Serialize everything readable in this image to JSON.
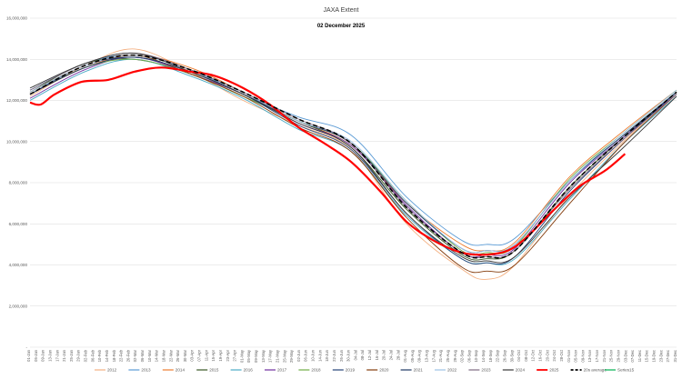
{
  "chart_data": {
    "type": "line",
    "title": "JAXA Extent",
    "subtitle": "02 December 2025",
    "ylim": [
      0,
      16000000
    ],
    "yticks": [
      "-",
      "2,000,000",
      "4,000,000",
      "6,000,000",
      "8,000,000",
      "10,000,000",
      "12,000,000",
      "14,000,000",
      "16,000,000"
    ],
    "ytick_values": [
      0,
      2000000,
      4000000,
      6000000,
      8000000,
      10000000,
      12000000,
      14000000,
      16000000
    ],
    "x_domain": [
      1,
      365
    ],
    "xticks": [
      "01-Jan",
      "05-Jan",
      "09-Jan",
      "13-Jan",
      "17-Jan",
      "21-Jan",
      "25-Jan",
      "29-Jan",
      "02-Feb",
      "06-Feb",
      "10-Feb",
      "14-Feb",
      "18-Feb",
      "22-Feb",
      "26-Feb",
      "02-Mar",
      "06-Mar",
      "10-Mar",
      "14-Mar",
      "18-Mar",
      "22-Mar",
      "26-Mar",
      "30-Mar",
      "03-Apr",
      "07-Apr",
      "11-Apr",
      "15-Apr",
      "19-Apr",
      "23-Apr",
      "27-Apr",
      "01-May",
      "05-May",
      "09-May",
      "13-May",
      "17-May",
      "21-May",
      "25-May",
      "29-May",
      "02-Jun",
      "06-Jun",
      "10-Jun",
      "14-Jun",
      "18-Jun",
      "22-Jun",
      "26-Jun",
      "30-Jun",
      "04-Jul",
      "08-Jul",
      "12-Jul",
      "16-Jul",
      "20-Jul",
      "24-Jul",
      "28-Jul",
      "01-Aug",
      "05-Aug",
      "09-Aug",
      "13-Aug",
      "17-Aug",
      "21-Aug",
      "25-Aug",
      "29-Aug",
      "02-Sep",
      "06-Sep",
      "10-Sep",
      "14-Sep",
      "18-Sep",
      "22-Sep",
      "26-Sep",
      "30-Sep",
      "04-Oct",
      "08-Oct",
      "12-Oct",
      "16-Oct",
      "20-Oct",
      "24-Oct",
      "28-Oct",
      "01-Nov",
      "05-Nov",
      "09-Nov",
      "13-Nov",
      "17-Nov",
      "21-Nov",
      "25-Nov",
      "29-Nov",
      "03-Dec",
      "07-Dec",
      "11-Dec",
      "15-Dec",
      "19-Dec",
      "23-Dec",
      "27-Dec",
      "31-Dec"
    ],
    "series": [
      {
        "name": "2012",
        "color": "#f4b183",
        "dash": "",
        "values": [
          [
            1,
            12200000
          ],
          [
            32,
            13700000
          ],
          [
            60,
            14500000
          ],
          [
            91,
            13400000
          ],
          [
            121,
            12000000
          ],
          [
            152,
            10800000
          ],
          [
            182,
            9600000
          ],
          [
            213,
            6000000
          ],
          [
            244,
            3800000
          ],
          [
            258,
            3300000
          ],
          [
            274,
            4000000
          ],
          [
            305,
            7400000
          ],
          [
            335,
            10000000
          ],
          [
            365,
            12400000
          ]
        ]
      },
      {
        "name": "2013",
        "color": "#5b9bd5",
        "dash": "",
        "values": [
          [
            1,
            12500000
          ],
          [
            32,
            13800000
          ],
          [
            60,
            14200000
          ],
          [
            91,
            13500000
          ],
          [
            121,
            12300000
          ],
          [
            152,
            11200000
          ],
          [
            182,
            10300000
          ],
          [
            213,
            7300000
          ],
          [
            244,
            5200000
          ],
          [
            258,
            5000000
          ],
          [
            274,
            5300000
          ],
          [
            305,
            8100000
          ],
          [
            335,
            10300000
          ],
          [
            365,
            12300000
          ]
        ]
      },
      {
        "name": "2014",
        "color": "#ed7d31",
        "dash": "",
        "values": [
          [
            1,
            12300000
          ],
          [
            32,
            13600000
          ],
          [
            60,
            14200000
          ],
          [
            91,
            13600000
          ],
          [
            121,
            12400000
          ],
          [
            152,
            11000000
          ],
          [
            182,
            9800000
          ],
          [
            213,
            7000000
          ],
          [
            244,
            5000000
          ],
          [
            258,
            4700000
          ],
          [
            274,
            5100000
          ],
          [
            305,
            8300000
          ],
          [
            335,
            10500000
          ],
          [
            365,
            12500000
          ]
        ]
      },
      {
        "name": "2015",
        "color": "#375623",
        "dash": "",
        "values": [
          [
            1,
            12400000
          ],
          [
            32,
            13800000
          ],
          [
            60,
            14000000
          ],
          [
            91,
            13300000
          ],
          [
            121,
            12200000
          ],
          [
            152,
            11000000
          ],
          [
            182,
            9700000
          ],
          [
            213,
            6700000
          ],
          [
            244,
            4500000
          ],
          [
            258,
            4300000
          ],
          [
            274,
            4700000
          ],
          [
            305,
            7800000
          ],
          [
            335,
            10200000
          ],
          [
            365,
            12400000
          ]
        ]
      },
      {
        "name": "2016",
        "color": "#4bacc6",
        "dash": "",
        "values": [
          [
            1,
            12000000
          ],
          [
            32,
            13400000
          ],
          [
            60,
            14000000
          ],
          [
            91,
            13200000
          ],
          [
            121,
            12100000
          ],
          [
            152,
            10600000
          ],
          [
            182,
            9500000
          ],
          [
            213,
            6400000
          ],
          [
            244,
            4300000
          ],
          [
            258,
            4100000
          ],
          [
            274,
            4300000
          ],
          [
            305,
            7200000
          ],
          [
            335,
            9900000
          ],
          [
            365,
            12200000
          ]
        ]
      },
      {
        "name": "2017",
        "color": "#7030a0",
        "dash": "",
        "values": [
          [
            1,
            12100000
          ],
          [
            32,
            13500000
          ],
          [
            60,
            14100000
          ],
          [
            91,
            13300000
          ],
          [
            121,
            12300000
          ],
          [
            152,
            10900000
          ],
          [
            182,
            9800000
          ],
          [
            213,
            6900000
          ],
          [
            244,
            4600000
          ],
          [
            258,
            4500000
          ],
          [
            274,
            4800000
          ],
          [
            305,
            8000000
          ],
          [
            335,
            10200000
          ],
          [
            365,
            12300000
          ]
        ]
      },
      {
        "name": "2018",
        "color": "#70ad47",
        "dash": "",
        "values": [
          [
            1,
            12300000
          ],
          [
            32,
            13600000
          ],
          [
            60,
            14000000
          ],
          [
            91,
            13300000
          ],
          [
            121,
            12200000
          ],
          [
            152,
            11000000
          ],
          [
            182,
            9900000
          ],
          [
            213,
            7100000
          ],
          [
            244,
            4700000
          ],
          [
            258,
            4600000
          ],
          [
            274,
            4900000
          ],
          [
            305,
            8200000
          ],
          [
            335,
            10400000
          ],
          [
            365,
            12500000
          ]
        ]
      },
      {
        "name": "2019",
        "color": "#264478",
        "dash": "",
        "values": [
          [
            1,
            12300000
          ],
          [
            32,
            13700000
          ],
          [
            60,
            14100000
          ],
          [
            91,
            13400000
          ],
          [
            121,
            12300000
          ],
          [
            152,
            10800000
          ],
          [
            182,
            9600000
          ],
          [
            213,
            6500000
          ],
          [
            244,
            4300000
          ],
          [
            258,
            4100000
          ],
          [
            274,
            4400000
          ],
          [
            305,
            7600000
          ],
          [
            335,
            10100000
          ],
          [
            365,
            12400000
          ]
        ]
      },
      {
        "name": "2020",
        "color": "#843c0c",
        "dash": "",
        "values": [
          [
            1,
            12400000
          ],
          [
            32,
            13700000
          ],
          [
            60,
            14200000
          ],
          [
            91,
            13300000
          ],
          [
            121,
            12200000
          ],
          [
            152,
            10700000
          ],
          [
            182,
            9500000
          ],
          [
            213,
            6300000
          ],
          [
            244,
            3900000
          ],
          [
            258,
            3700000
          ],
          [
            274,
            4000000
          ],
          [
            305,
            7000000
          ],
          [
            335,
            9900000
          ],
          [
            365,
            12300000
          ]
        ]
      },
      {
        "name": "2021",
        "color": "#1f3864",
        "dash": "",
        "values": [
          [
            1,
            12300000
          ],
          [
            32,
            13600000
          ],
          [
            60,
            14100000
          ],
          [
            91,
            13400000
          ],
          [
            121,
            12300000
          ],
          [
            152,
            11000000
          ],
          [
            182,
            9900000
          ],
          [
            213,
            7000000
          ],
          [
            244,
            4800000
          ],
          [
            258,
            4700000
          ],
          [
            274,
            5000000
          ],
          [
            305,
            8100000
          ],
          [
            335,
            10300000
          ],
          [
            365,
            12400000
          ]
        ]
      },
      {
        "name": "2022",
        "color": "#9dc3e6",
        "dash": "",
        "values": [
          [
            1,
            12400000
          ],
          [
            32,
            13700000
          ],
          [
            60,
            14200000
          ],
          [
            91,
            13500000
          ],
          [
            121,
            12400000
          ],
          [
            152,
            11000000
          ],
          [
            182,
            10000000
          ],
          [
            213,
            7100000
          ],
          [
            244,
            4800000
          ],
          [
            258,
            4700000
          ],
          [
            274,
            5000000
          ],
          [
            305,
            8100000
          ],
          [
            335,
            10400000
          ],
          [
            365,
            12500000
          ]
        ]
      },
      {
        "name": "2023",
        "color": "#7f6a83",
        "dash": "",
        "values": [
          [
            1,
            12500000
          ],
          [
            32,
            13800000
          ],
          [
            60,
            14300000
          ],
          [
            91,
            13500000
          ],
          [
            121,
            12400000
          ],
          [
            152,
            11100000
          ],
          [
            182,
            9900000
          ],
          [
            213,
            6800000
          ],
          [
            244,
            4600000
          ],
          [
            258,
            4400000
          ],
          [
            274,
            4700000
          ],
          [
            305,
            7700000
          ],
          [
            335,
            10100000
          ],
          [
            365,
            12300000
          ]
        ]
      },
      {
        "name": "2024",
        "color": "#3a3a3a",
        "dash": "",
        "values": [
          [
            1,
            12600000
          ],
          [
            32,
            13800000
          ],
          [
            60,
            14300000
          ],
          [
            91,
            13400000
          ],
          [
            121,
            12300000
          ],
          [
            152,
            10900000
          ],
          [
            182,
            9700000
          ],
          [
            213,
            6500000
          ],
          [
            244,
            4400000
          ],
          [
            258,
            4200000
          ],
          [
            274,
            4400000
          ],
          [
            305,
            7300000
          ],
          [
            335,
            9700000
          ],
          [
            365,
            12200000
          ]
        ]
      },
      {
        "name": "2025",
        "color": "#ff0000",
        "dash": "",
        "width": 2.2,
        "values": [
          [
            1,
            11900000
          ],
          [
            7,
            11800000
          ],
          [
            15,
            12300000
          ],
          [
            30,
            12900000
          ],
          [
            45,
            13000000
          ],
          [
            60,
            13400000
          ],
          [
            75,
            13600000
          ],
          [
            91,
            13400000
          ],
          [
            105,
            13200000
          ],
          [
            121,
            12600000
          ],
          [
            136,
            11800000
          ],
          [
            152,
            10700000
          ],
          [
            167,
            9900000
          ],
          [
            182,
            9000000
          ],
          [
            198,
            7600000
          ],
          [
            213,
            6100000
          ],
          [
            228,
            5200000
          ],
          [
            244,
            4600000
          ],
          [
            258,
            4500000
          ],
          [
            270,
            4700000
          ],
          [
            280,
            5300000
          ],
          [
            295,
            6600000
          ],
          [
            310,
            7800000
          ],
          [
            325,
            8600000
          ],
          [
            336,
            9400000
          ]
        ]
      },
      {
        "name": "20s average",
        "color": "#000000",
        "dash": "5,3",
        "width": 1.6,
        "values": [
          [
            1,
            12300000
          ],
          [
            32,
            13700000
          ],
          [
            60,
            14200000
          ],
          [
            91,
            13500000
          ],
          [
            121,
            12400000
          ],
          [
            152,
            11100000
          ],
          [
            182,
            9900000
          ],
          [
            213,
            6800000
          ],
          [
            244,
            4600000
          ],
          [
            258,
            4400000
          ],
          [
            274,
            4700000
          ],
          [
            305,
            7800000
          ],
          [
            335,
            10200000
          ],
          [
            365,
            12400000
          ]
        ]
      },
      {
        "name": "Series15",
        "color": "#00b050",
        "dash": "",
        "values": []
      }
    ]
  }
}
